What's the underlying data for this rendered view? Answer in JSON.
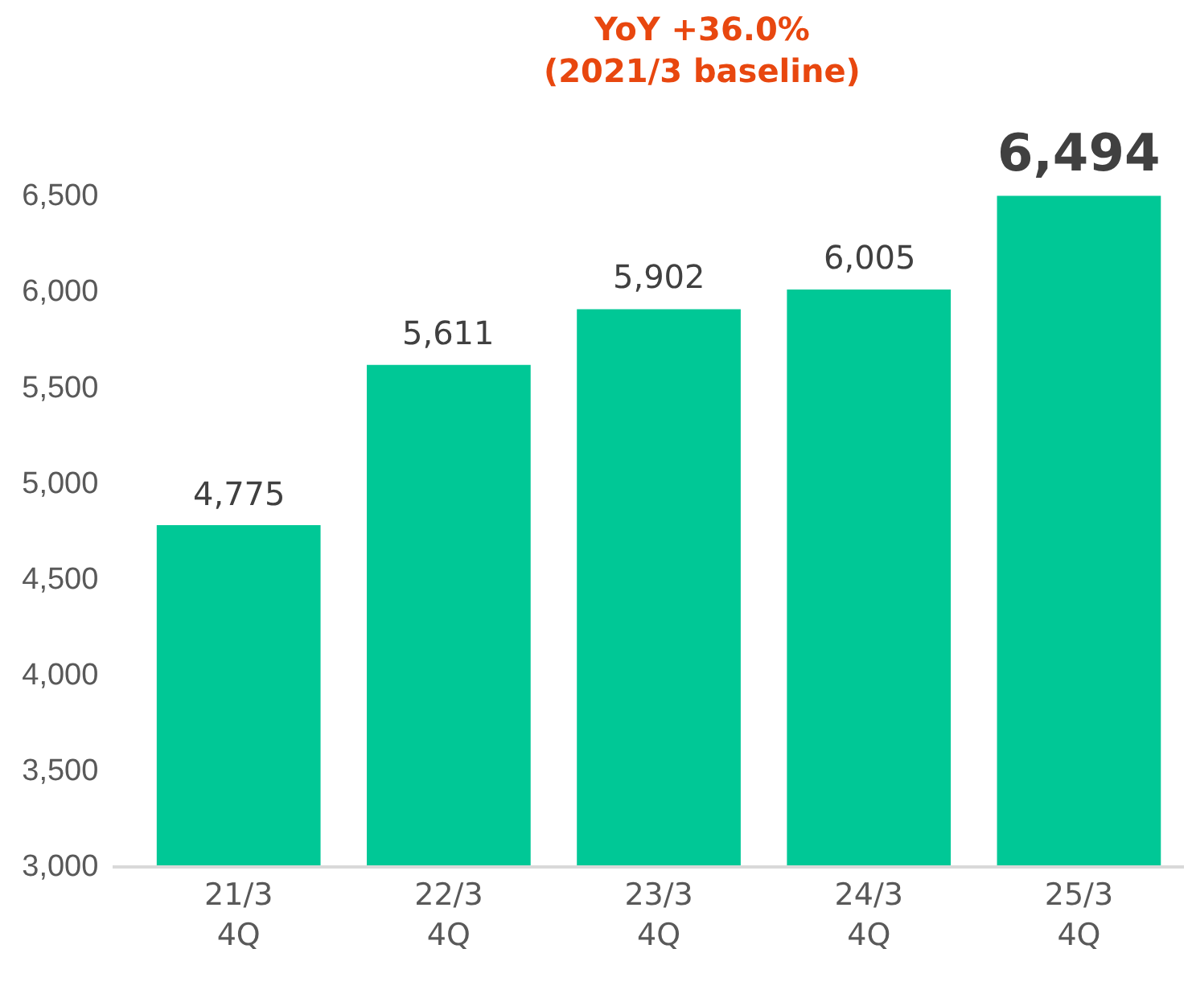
{
  "chart_data": {
    "type": "bar",
    "categories": [
      "21/3\n4Q",
      "22/3\n4Q",
      "23/3\n4Q",
      "24/3\n4Q",
      "25/3\n4Q"
    ],
    "values": [
      4775,
      5611,
      5902,
      6005,
      6494
    ],
    "color": "#00c896",
    "ylim": [
      3000,
      6500
    ],
    "yticks": [
      {
        "value": 3000,
        "label": "3,000"
      },
      {
        "value": 3500,
        "label": "3,500"
      },
      {
        "value": 4000,
        "label": "4,000"
      },
      {
        "value": 4500,
        "label": "4,500"
      },
      {
        "value": 5000,
        "label": "5,000"
      },
      {
        "value": 5500,
        "label": "5,500"
      },
      {
        "value": 6000,
        "label": "6,000"
      },
      {
        "value": 6500,
        "label": "6,500"
      }
    ],
    "value_labels": [
      "4,775",
      "5,611",
      "5,902",
      "6,005",
      "6,494"
    ],
    "annotations": [
      "YoY +36.0%\n(2021/3 baseline)"
    ],
    "legend": false
  }
}
